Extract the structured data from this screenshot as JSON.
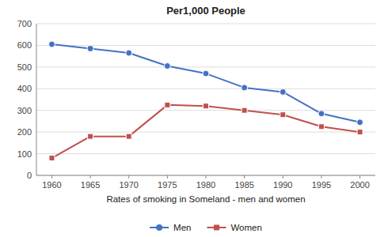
{
  "chart_data": {
    "type": "line",
    "title": "Per1,000 People",
    "x_label": "Rates of smoking in Someland - men and women",
    "x": [
      1960,
      1965,
      1970,
      1975,
      1980,
      1985,
      1990,
      1995,
      2000
    ],
    "xlim": [
      1958,
      2002
    ],
    "xticks": [
      1960,
      1965,
      1970,
      1975,
      1980,
      1985,
      1990,
      1995,
      2000
    ],
    "ylim": [
      0,
      700
    ],
    "yticks": [
      0,
      100,
      200,
      300,
      400,
      500,
      600,
      700
    ],
    "grid": true,
    "legend": "bottom",
    "series": [
      {
        "name": "Men",
        "color": "#4472C4",
        "marker": "circle",
        "values": [
          605,
          585,
          565,
          505,
          470,
          405,
          385,
          285,
          245
        ]
      },
      {
        "name": "Women",
        "color": "#C0504D",
        "marker": "square",
        "values": [
          80,
          180,
          180,
          325,
          320,
          300,
          280,
          225,
          200
        ]
      }
    ]
  }
}
